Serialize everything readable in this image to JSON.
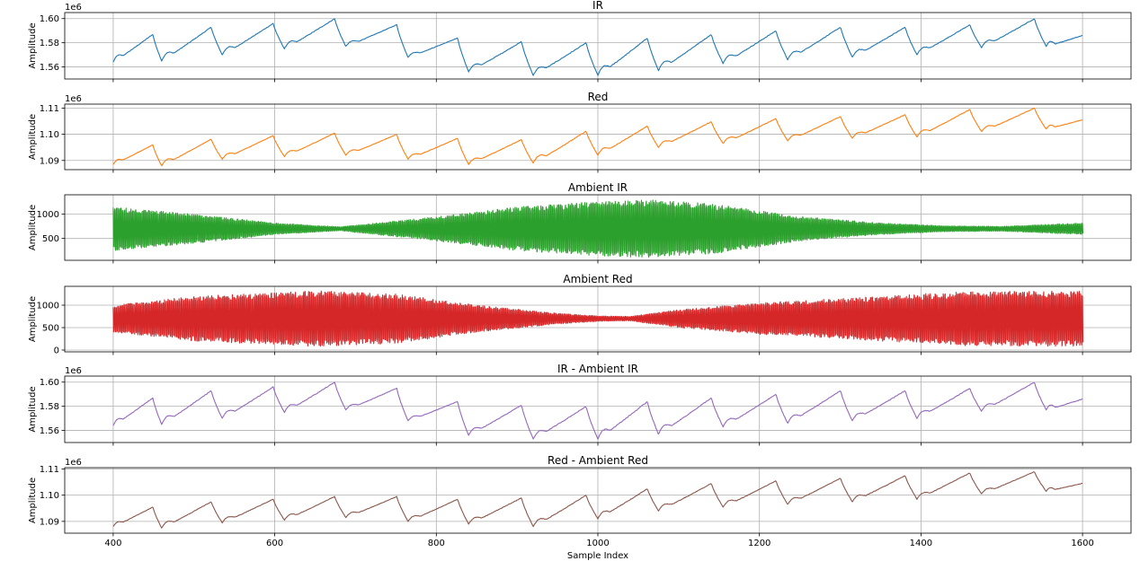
{
  "chart_data": [
    {
      "type": "line",
      "title": "IR",
      "ylabel": "Amplitude",
      "offset_label": "1e6",
      "color": "#1f77b4",
      "xlim": [
        340,
        1660
      ],
      "ylim": [
        1.55,
        1.605
      ],
      "yticks": [
        1.56,
        1.58,
        1.6
      ],
      "ytick_labels": [
        "1.56",
        "1.58",
        "1.60"
      ],
      "signal": "ppg",
      "beat_troughs": [
        400,
        460,
        535,
        612,
        688,
        765,
        840,
        920,
        1000,
        1075,
        1155,
        1235,
        1315,
        1395,
        1475,
        1555
      ],
      "trough_values": [
        1.564,
        1.565,
        1.57,
        1.575,
        1.577,
        1.568,
        1.556,
        1.553,
        1.553,
        1.557,
        1.563,
        1.566,
        1.568,
        1.57,
        1.576,
        1.577
      ],
      "peak_values": [
        1.587,
        1.593,
        1.596,
        1.6,
        1.595,
        1.584,
        1.581,
        1.58,
        1.584,
        1.587,
        1.59,
        1.593,
        1.593,
        1.595,
        1.6,
        1.6
      ],
      "end_value": 1.586,
      "grid": true
    },
    {
      "type": "line",
      "title": "Red",
      "ylabel": "Amplitude",
      "offset_label": "1e6",
      "color": "#ff7f0e",
      "xlim": [
        340,
        1660
      ],
      "ylim": [
        1.0865,
        1.1115
      ],
      "yticks": [
        1.09,
        1.1,
        1.11
      ],
      "ytick_labels": [
        "1.09",
        "1.10",
        "1.11"
      ],
      "signal": "ppg",
      "beat_troughs": [
        400,
        460,
        535,
        612,
        688,
        765,
        840,
        920,
        1000,
        1075,
        1155,
        1235,
        1315,
        1395,
        1475,
        1555
      ],
      "trough_values": [
        1.0885,
        1.088,
        1.0905,
        1.0915,
        1.092,
        1.0905,
        1.0885,
        1.089,
        1.092,
        1.095,
        1.0965,
        1.0975,
        1.0985,
        1.099,
        1.101,
        1.102
      ],
      "peak_values": [
        1.096,
        1.0982,
        1.0995,
        1.1005,
        1.1,
        1.0985,
        1.098,
        1.1012,
        1.1032,
        1.1048,
        1.106,
        1.1068,
        1.1075,
        1.1095,
        1.11,
        1.11
      ],
      "end_value": 1.1055,
      "grid": true
    },
    {
      "type": "line",
      "title": "Ambient IR",
      "ylabel": "Amplitude",
      "color": "#2ca02c",
      "xlim": [
        340,
        1660
      ],
      "ylim": [
        50,
        1400
      ],
      "yticks": [
        500,
        1000
      ],
      "ytick_labels": [
        "500",
        "1000"
      ],
      "signal": "ambient",
      "x_start": 400,
      "x_end": 1600,
      "center": 700,
      "envelope_x": [
        400,
        500,
        600,
        680,
        800,
        900,
        1000,
        1070,
        1150,
        1250,
        1350,
        1430,
        1500,
        1600
      ],
      "envelope_amplitude": [
        450,
        300,
        120,
        40,
        250,
        450,
        560,
        600,
        500,
        250,
        120,
        60,
        50,
        120
      ],
      "grid": true
    },
    {
      "type": "line",
      "title": "Ambient Red",
      "ylabel": "Amplitude",
      "color": "#d62728",
      "xlim": [
        340,
        1660
      ],
      "ylim": [
        -40,
        1420
      ],
      "yticks": [
        0,
        500,
        1000
      ],
      "ytick_labels": [
        "0",
        "500",
        "1000"
      ],
      "signal": "ambient",
      "x_start": 400,
      "x_end": 1600,
      "center": 700,
      "envelope_x": [
        400,
        500,
        650,
        750,
        850,
        950,
        1000,
        1040,
        1100,
        1200,
        1300,
        1450,
        1600
      ],
      "envelope_amplitude": [
        300,
        500,
        620,
        550,
        300,
        120,
        60,
        50,
        200,
        350,
        450,
        600,
        620
      ],
      "grid": true
    },
    {
      "type": "line",
      "title": "IR - Ambient IR",
      "ylabel": "Amplitude",
      "offset_label": "1e6",
      "color": "#9467bd",
      "xlim": [
        340,
        1660
      ],
      "ylim": [
        1.55,
        1.605
      ],
      "yticks": [
        1.56,
        1.58,
        1.6
      ],
      "ytick_labels": [
        "1.56",
        "1.58",
        "1.60"
      ],
      "signal": "ppg",
      "beat_troughs": [
        400,
        460,
        535,
        612,
        688,
        765,
        840,
        920,
        1000,
        1075,
        1155,
        1235,
        1315,
        1395,
        1475,
        1555
      ],
      "trough_values": [
        1.564,
        1.565,
        1.57,
        1.575,
        1.577,
        1.568,
        1.556,
        1.553,
        1.553,
        1.557,
        1.563,
        1.566,
        1.568,
        1.57,
        1.576,
        1.577
      ],
      "peak_values": [
        1.587,
        1.593,
        1.596,
        1.6,
        1.595,
        1.584,
        1.581,
        1.58,
        1.584,
        1.587,
        1.59,
        1.593,
        1.593,
        1.595,
        1.6,
        1.6
      ],
      "end_value": 1.586,
      "grid": true
    },
    {
      "type": "line",
      "title": "Red - Ambient Red",
      "ylabel": "Amplitude",
      "offset_label": "1e6",
      "xlabel": "Sample Index",
      "color": "#8c564b",
      "xlim": [
        340,
        1660
      ],
      "ylim": [
        1.0855,
        1.1105
      ],
      "yticks": [
        1.09,
        1.1,
        1.11
      ],
      "ytick_labels": [
        "1.09",
        "1.10",
        "1.11"
      ],
      "xticks": [
        400,
        600,
        800,
        1000,
        1200,
        1400,
        1600
      ],
      "xtick_labels": [
        "400",
        "600",
        "800",
        "1000",
        "1200",
        "1400",
        "1600"
      ],
      "signal": "ppg",
      "beat_troughs": [
        400,
        460,
        535,
        612,
        688,
        765,
        840,
        920,
        1000,
        1075,
        1155,
        1235,
        1315,
        1395,
        1475,
        1555
      ],
      "trough_values": [
        1.088,
        1.0875,
        1.0895,
        1.0905,
        1.0915,
        1.09,
        1.089,
        1.088,
        1.091,
        1.094,
        1.0955,
        1.0965,
        1.0975,
        1.0985,
        1.1005,
        1.1015
      ],
      "peak_values": [
        1.0955,
        1.0975,
        1.0985,
        1.0995,
        1.0995,
        1.0985,
        1.099,
        1.1,
        1.1025,
        1.1045,
        1.1055,
        1.1065,
        1.1075,
        1.1085,
        1.109,
        1.109
      ],
      "end_value": 1.1045,
      "grid": true
    }
  ]
}
